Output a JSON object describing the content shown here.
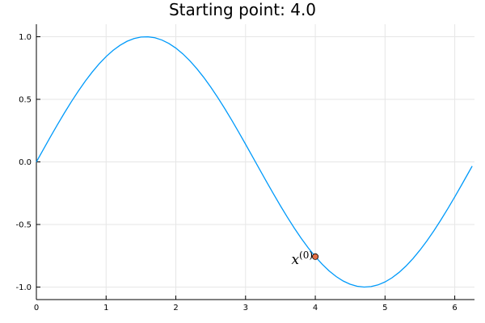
{
  "chart_data": {
    "type": "line",
    "title": "Starting point: 4.0",
    "xlabel": "",
    "ylabel": "",
    "xlim": [
      0,
      6.283
    ],
    "ylim": [
      -1.1,
      1.1
    ],
    "x_ticks": [
      0,
      1,
      2,
      3,
      4,
      5,
      6
    ],
    "x_tick_labels": [
      "0",
      "1",
      "2",
      "3",
      "4",
      "5",
      "6"
    ],
    "y_ticks": [
      -1.0,
      -0.5,
      0.0,
      0.5,
      1.0
    ],
    "y_tick_labels": [
      "-1.0",
      "-0.5",
      "0.0",
      "0.5",
      "1.0"
    ],
    "grid": true,
    "legend": "none",
    "series": [
      {
        "color": "#009AFA",
        "x": [
          0.0,
          0.1,
          0.2,
          0.3,
          0.4,
          0.5,
          0.6,
          0.7,
          0.8,
          0.9,
          1.0,
          1.1,
          1.2,
          1.3,
          1.4,
          1.5,
          1.6,
          1.7,
          1.8,
          1.9,
          2.0,
          2.1,
          2.2,
          2.3,
          2.4,
          2.5,
          2.6,
          2.7,
          2.8,
          2.9,
          3.0,
          3.1,
          3.2,
          3.3,
          3.4,
          3.5,
          3.6,
          3.7,
          3.8,
          3.9,
          4.0,
          4.1,
          4.2,
          4.3,
          4.4,
          4.5,
          4.6,
          4.7,
          4.8,
          4.9,
          5.0,
          5.1,
          5.2,
          5.3,
          5.4,
          5.5,
          5.6,
          5.7,
          5.8,
          5.9,
          6.0,
          6.1,
          6.2,
          6.25
        ],
        "y": [
          0.0,
          0.0998,
          0.1987,
          0.2955,
          0.3894,
          0.4794,
          0.5646,
          0.6442,
          0.7174,
          0.7833,
          0.8415,
          0.8912,
          0.932,
          0.9636,
          0.9854,
          0.9975,
          0.9996,
          0.9917,
          0.9738,
          0.9463,
          0.9093,
          0.8632,
          0.8085,
          0.7457,
          0.6755,
          0.5985,
          0.5155,
          0.4274,
          0.335,
          0.2392,
          0.1411,
          0.0416,
          -0.0584,
          -0.1577,
          -0.2555,
          -0.3508,
          -0.4425,
          -0.5298,
          -0.6119,
          -0.6878,
          -0.7568,
          -0.8183,
          -0.8716,
          -0.9162,
          -0.9516,
          -0.9775,
          -0.9937,
          -0.9999,
          -0.9962,
          -0.9825,
          -0.9589,
          -0.9258,
          -0.8835,
          -0.8323,
          -0.7728,
          -0.7055,
          -0.6313,
          -0.5507,
          -0.4646,
          -0.3739,
          -0.2794,
          -0.1822,
          -0.0831,
          -0.0332
        ]
      }
    ],
    "points": [
      {
        "x": 4.0,
        "y": -0.7568,
        "color": "#E26F46",
        "label_base": "x",
        "label_sup": "(0)"
      }
    ]
  }
}
